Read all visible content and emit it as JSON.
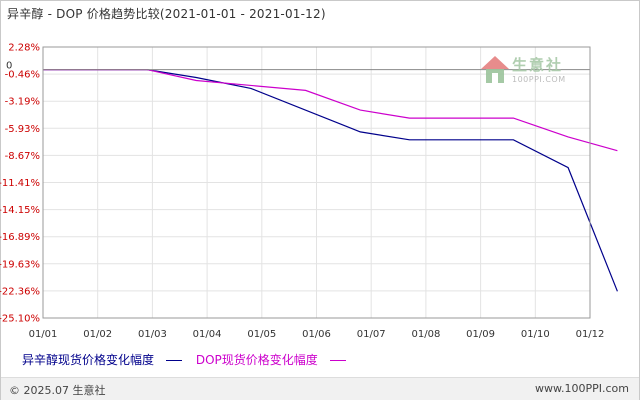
{
  "chart_data": {
    "type": "line",
    "title": "异辛醇 - DOP 价格趋势比较(2021-01-01 - 2021-01-12)",
    "x": [
      "01/01",
      "01/02",
      "01/03",
      "01/04",
      "01/05",
      "01/06",
      "01/07",
      "01/08",
      "01/09",
      "01/10",
      "01/12"
    ],
    "y_ticks": [
      "2.28%",
      "-0.46%",
      "-3.19%",
      "-5.93%",
      "-8.67%",
      "-11.41%",
      "-14.15%",
      "-16.89%",
      "-19.63%",
      "-22.36%",
      "-25.10%"
    ],
    "zero_label": "0",
    "ylim": [
      -25.1,
      2.28
    ],
    "grid": true,
    "legend_position": "bottom-left",
    "series": [
      {
        "name": "异辛醇现货价格变化幅度",
        "color": "#00008b",
        "points": [
          {
            "x": 0,
            "y": 0
          },
          {
            "x": 1,
            "y": 0
          },
          {
            "x": 1.9,
            "y": 0
          },
          {
            "x": 2.8,
            "y": -0.8
          },
          {
            "x": 3.8,
            "y": -1.9
          },
          {
            "x": 5.8,
            "y": -6.3
          },
          {
            "x": 6.7,
            "y": -7.1
          },
          {
            "x": 8.6,
            "y": -7.1
          },
          {
            "x": 9.6,
            "y": -9.9
          },
          {
            "x": 10.5,
            "y": -22.4
          }
        ]
      },
      {
        "name": "DOP现货价格变化幅度",
        "color": "#cc00cc",
        "points": [
          {
            "x": 0,
            "y": 0
          },
          {
            "x": 1,
            "y": 0
          },
          {
            "x": 1.9,
            "y": 0
          },
          {
            "x": 2.8,
            "y": -1.1
          },
          {
            "x": 4.8,
            "y": -2.1
          },
          {
            "x": 5.8,
            "y": -4.1
          },
          {
            "x": 6.7,
            "y": -4.9
          },
          {
            "x": 8.6,
            "y": -4.9
          },
          {
            "x": 9.6,
            "y": -6.8
          },
          {
            "x": 10.5,
            "y": -8.2
          }
        ]
      }
    ]
  },
  "watermark": {
    "name": "生意社",
    "url": "100PPI.COM",
    "logo_colors": [
      "#e58080",
      "#9cc49c",
      "#bdbdbd"
    ]
  },
  "footer": {
    "copyright": "© 2025.07 生意社",
    "site": "www.100PPI.com"
  }
}
